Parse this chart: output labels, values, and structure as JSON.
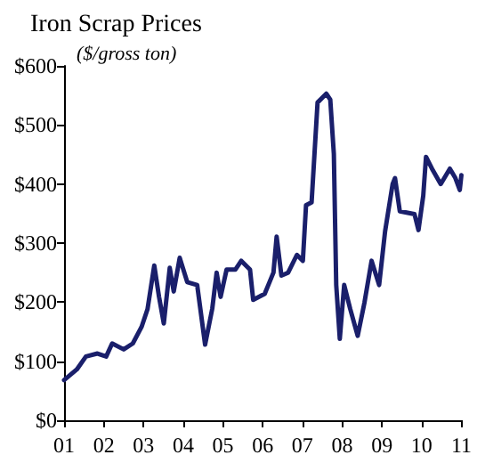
{
  "chart_data": {
    "type": "line",
    "title": "Iron Scrap Prices",
    "subtitle": "($/gross ton)",
    "x": [
      2001.0,
      2001.32,
      2001.55,
      2001.84,
      2002.06,
      2002.21,
      2002.5,
      2002.73,
      2002.95,
      2003.1,
      2003.27,
      2003.39,
      2003.51,
      2003.66,
      2003.76,
      2003.91,
      2004.1,
      2004.35,
      2004.55,
      2004.73,
      2004.84,
      2004.94,
      2005.09,
      2005.31,
      2005.46,
      2005.68,
      2005.76,
      2006.05,
      2006.27,
      2006.35,
      2006.47,
      2006.64,
      2006.86,
      2007.01,
      2007.09,
      2007.23,
      2007.38,
      2007.6,
      2007.7,
      2007.79,
      2007.85,
      2007.94,
      2008.05,
      2008.2,
      2008.39,
      2008.56,
      2008.74,
      2008.93,
      2009.08,
      2009.27,
      2009.33,
      2009.45,
      2009.82,
      2009.92,
      2010.04,
      2010.11,
      2010.26,
      2010.48,
      2010.71,
      2010.85,
      2010.96,
      2011.0
    ],
    "series": [
      {
        "color": "#1a1f6b",
        "values": [
          68,
          86,
          108,
          113,
          108,
          130,
          120,
          130,
          158,
          188,
          262,
          209,
          164,
          258,
          218,
          275,
          234,
          229,
          128,
          189,
          250,
          209,
          255,
          255,
          270,
          255,
          204,
          214,
          250,
          311,
          245,
          250,
          280,
          270,
          364,
          369,
          538,
          553,
          543,
          451,
          229,
          138,
          229,
          189,
          143,
          199,
          270,
          229,
          320,
          400,
          410,
          354,
          349,
          322,
          380,
          446,
          426,
          400,
          426,
          410,
          390,
          415
        ]
      }
    ],
    "xlim": [
      2001,
      2011
    ],
    "xticks": [
      {
        "value": 2001,
        "label": "01"
      },
      {
        "value": 2002,
        "label": "02"
      },
      {
        "value": 2003,
        "label": "03"
      },
      {
        "value": 2004,
        "label": "04"
      },
      {
        "value": 2005,
        "label": "05"
      },
      {
        "value": 2006,
        "label": "06"
      },
      {
        "value": 2007,
        "label": "07"
      },
      {
        "value": 2008,
        "label": "08"
      },
      {
        "value": 2009,
        "label": "09"
      },
      {
        "value": 2010,
        "label": "10"
      },
      {
        "value": 2011,
        "label": "11"
      }
    ],
    "ylim": [
      0,
      600
    ],
    "yticks": [
      {
        "value": 0,
        "label": "$0"
      },
      {
        "value": 100,
        "label": "$100"
      },
      {
        "value": 200,
        "label": "$200"
      },
      {
        "value": 300,
        "label": "$300"
      },
      {
        "value": 400,
        "label": "$400"
      },
      {
        "value": 500,
        "label": "$500"
      },
      {
        "value": 600,
        "label": "$600"
      }
    ],
    "grid": false,
    "marker": "none",
    "line_style": "solid"
  }
}
